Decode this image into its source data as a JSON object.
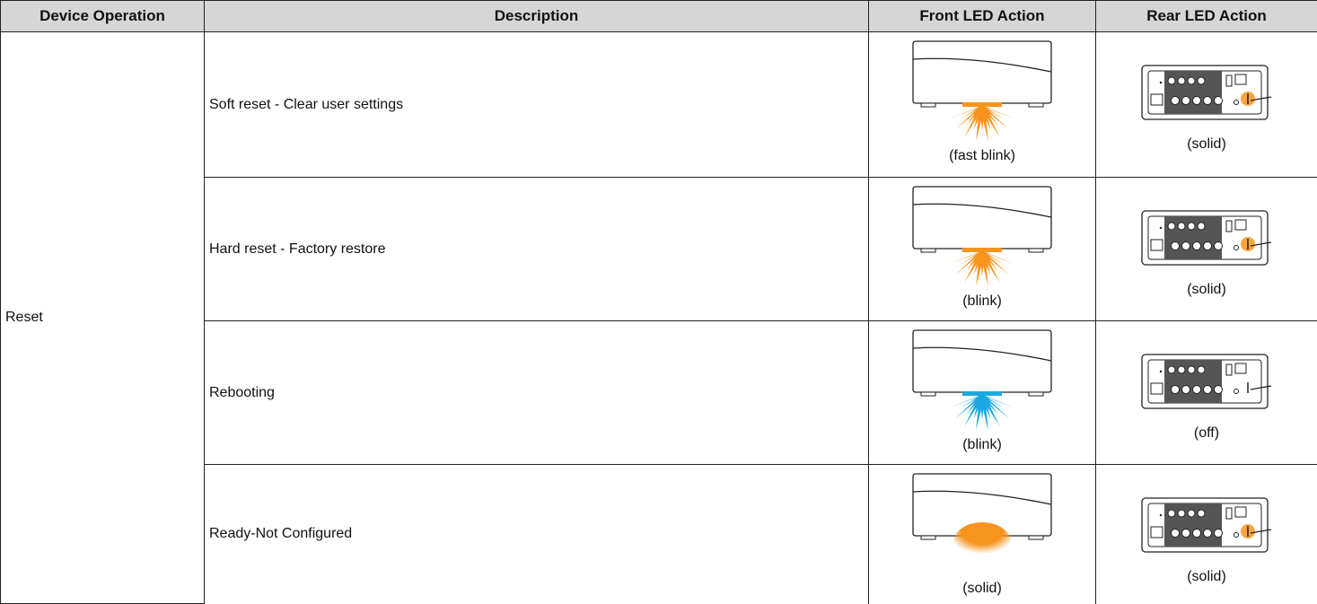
{
  "table": {
    "header": [
      "Device Operation",
      "Description",
      "Front LED Action",
      "Rear LED Action"
    ],
    "group": "Reset",
    "rows": [
      [
        "Soft reset - Clear user settings",
        "(fast blink)",
        "(solid)"
      ],
      [
        "Hard reset - Factory restore",
        "(blink)",
        "(solid)"
      ],
      [
        "Rebooting",
        "(blink)",
        "(off)"
      ],
      [
        "Ready-Not Configured",
        "(solid)",
        "(solid)"
      ]
    ]
  }
}
